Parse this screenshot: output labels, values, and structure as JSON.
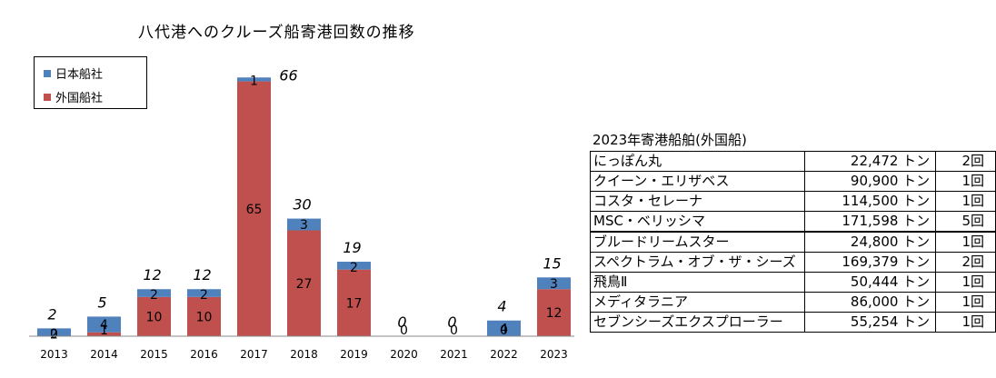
{
  "chart_data": {
    "type": "bar",
    "stacked": true,
    "title": "八代港へのクルーズ船寄港回数の推移",
    "categories": [
      "2013",
      "2014",
      "2015",
      "2016",
      "2017",
      "2018",
      "2019",
      "2020",
      "2021",
      "2022",
      "2023"
    ],
    "series": [
      {
        "name": "外国船社",
        "color": "#c0504d",
        "values": [
          0,
          1,
          10,
          10,
          65,
          27,
          17,
          0,
          0,
          0,
          12
        ]
      },
      {
        "name": "日本船社",
        "color": "#4f81bd",
        "values": [
          2,
          4,
          2,
          2,
          1,
          3,
          2,
          0,
          0,
          4,
          3
        ]
      }
    ],
    "totals": [
      2,
      5,
      12,
      12,
      66,
      30,
      19,
      0,
      0,
      4,
      15
    ],
    "ylim": [
      0,
      70
    ],
    "legend": {
      "position": "top-left",
      "items": [
        "日本船社",
        "外国船社"
      ]
    }
  },
  "table": {
    "title": "2023年寄港船舶(外国船)",
    "rows": [
      {
        "name": "にっぽん丸",
        "tonnage": "22,472 トン",
        "count": "2回"
      },
      {
        "name": "クイーン・エリザベス",
        "tonnage": "90,900 トン",
        "count": "1回"
      },
      {
        "name": "コスタ・セレーナ",
        "tonnage": "114,500 トン",
        "count": "1回"
      },
      {
        "name": "MSC・ベリッシマ",
        "tonnage": "171,598 トン",
        "count": "5回"
      },
      {
        "name": "ブルードリームスター",
        "tonnage": "24,800 トン",
        "count": "1回"
      },
      {
        "name": "スペクトラム・オブ・ザ・シーズ",
        "tonnage": "169,379 トン",
        "count": "2回"
      },
      {
        "name": "飛鳥Ⅱ",
        "tonnage": "50,444 トン",
        "count": "1回"
      },
      {
        "name": "メディタラニア",
        "tonnage": "86,000 トン",
        "count": "1回"
      },
      {
        "name": "セブンシーズエクスプローラー",
        "tonnage": "55,254 トン",
        "count": "1回"
      }
    ]
  }
}
